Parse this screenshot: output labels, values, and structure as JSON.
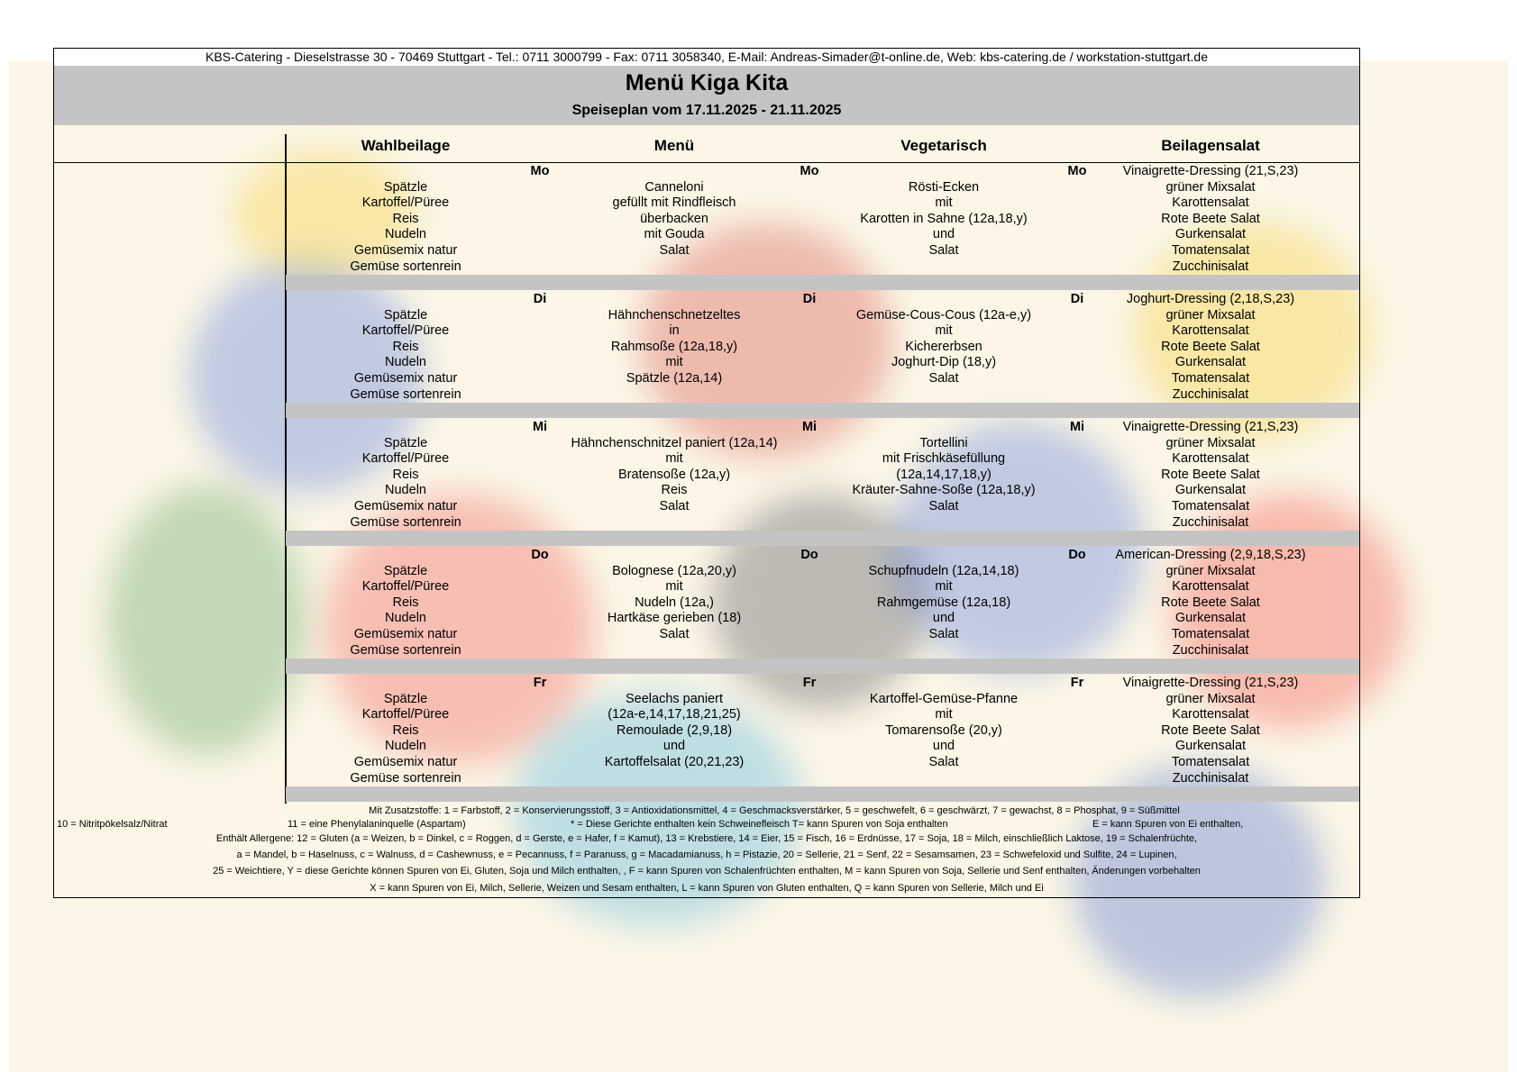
{
  "header": {
    "contact": "KBS-Catering - Dieselstrasse 30 - 70469 Stuttgart - Tel.: 0711 3000799 - Fax: 0711 3058340, E-Mail: Andreas-Simader@t-online.de, Web: kbs-catering.de / workstation-stuttgart.de",
    "title": "Menü Kiga Kita",
    "subtitle": "Speiseplan vom 17.11.2025 - 21.11.2025"
  },
  "columns": [
    "Wahlbeilage",
    "Menü",
    "Vegetarisch",
    "Beilagensalat"
  ],
  "days": [
    {
      "day": "Mo",
      "wahl": [
        "Spätzle",
        "Kartoffel/Püree",
        "Reis",
        "Nudeln",
        "Gemüsemix natur",
        "Gemüse sortenrein"
      ],
      "menu": [
        "Canneloni",
        "gefüllt mit Rindfleisch",
        "überbacken",
        "mit Gouda",
        "Salat"
      ],
      "veg": [
        "Rösti-Ecken",
        "mit",
        "Karotten in Sahne (12a,18,y)",
        "und",
        "Salat"
      ],
      "salat": [
        "Vinaigrette-Dressing (21,S,23)",
        "grüner Mixsalat",
        "Karottensalat",
        "Rote Beete Salat",
        "Gurkensalat",
        "Tomatensalat",
        "Zucchinisalat"
      ]
    },
    {
      "day": "Di",
      "wahl": [
        "Spätzle",
        "Kartoffel/Püree",
        "Reis",
        "Nudeln",
        "Gemüsemix natur",
        "Gemüse sortenrein"
      ],
      "menu": [
        "Hähnchenschnetzeltes",
        "in",
        "Rahmsoße (12a,18,y)",
        "mit",
        "Spätzle (12a,14)"
      ],
      "veg": [
        "Gemüse-Cous-Cous (12a-e,y)",
        "mit",
        "Kichererbsen",
        "Joghurt-Dip (18,y)",
        "Salat"
      ],
      "salat": [
        "Joghurt-Dressing  (2,18,S,23)",
        "grüner Mixsalat",
        "Karottensalat",
        "Rote Beete Salat",
        "Gurkensalat",
        "Tomatensalat",
        "Zucchinisalat"
      ]
    },
    {
      "day": "Mi",
      "wahl": [
        "Spätzle",
        "Kartoffel/Püree",
        "Reis",
        "Nudeln",
        "Gemüsemix natur",
        "Gemüse sortenrein"
      ],
      "menu": [
        "Hähnchenschnitzel paniert (12a,14)",
        "mit",
        "Bratensoße (12a,y)",
        "Reis",
        "Salat"
      ],
      "veg": [
        "Tortellini",
        "mit Frischkäsefüllung",
        "(12a,14,17,18,y)",
        "Kräuter-Sahne-Soße (12a,18,y)",
        "Salat"
      ],
      "salat": [
        "Vinaigrette-Dressing (21,S,23)",
        "grüner Mixsalat",
        "Karottensalat",
        "Rote Beete Salat",
        "Gurkensalat",
        "Tomatensalat",
        "Zucchinisalat"
      ]
    },
    {
      "day": "Do",
      "wahl": [
        "Spätzle",
        "Kartoffel/Püree",
        "Reis",
        "Nudeln",
        "Gemüsemix natur",
        "Gemüse sortenrein"
      ],
      "menu": [
        "Bolognese (12a,20,y)",
        "mit",
        "Nudeln (12a,)",
        "Hartkäse gerieben (18)",
        "Salat"
      ],
      "veg": [
        "Schupfnudeln (12a,14,18)",
        "mit",
        "Rahmgemüse (12a,18)",
        "und",
        "Salat"
      ],
      "salat": [
        "American-Dressing (2,9,18,S,23)",
        "grüner Mixsalat",
        "Karottensalat",
        "Rote Beete Salat",
        "Gurkensalat",
        "Tomatensalat",
        "Zucchinisalat"
      ]
    },
    {
      "day": "Fr",
      "wahl": [
        "Spätzle",
        "Kartoffel/Püree",
        "Reis",
        "Nudeln",
        "Gemüsemix natur",
        "Gemüse sortenrein"
      ],
      "menu": [
        "Seelachs paniert",
        "(12a-e,14,17,18,21,25)",
        "Remoulade (2,9,18)",
        "und",
        "Kartoffelsalat (20,21,23)"
      ],
      "veg": [
        "Kartoffel-Gemüse-Pfanne",
        "mit",
        "Tomarensoße (20,y)",
        "und",
        "Salat"
      ],
      "salat": [
        "Vinaigrette-Dressing (21,S,23)",
        "grüner Mixsalat",
        "Karottensalat",
        "Rote Beete Salat",
        "Gurkensalat",
        "Tomatensalat",
        "Zucchinisalat"
      ]
    }
  ],
  "footer": {
    "l1": "Mit Zusatzstoffe: 1 =  Farbstoff,  2 = Konservierungsstoff, 3 = Antioxidationsmittel, 4 =  Geschmacksverstärker, 5 = geschwefelt, 6 = geschwärzt, 7 = gewachst, 8 = Phosphat, 9 = Süßmittel",
    "l2a": "10 = Nitritpökelsalz/Nitrat",
    "l2b": "11 = eine Phenylalaninquelle (Aspartam)",
    "l2c": "* = Diese Gerichte enthalten kein Schweinefleisch  T= kann Spuren von Soja enthalten",
    "l2d": "E = kann Spuren von Ei enthalten,",
    "l3": "Enthält Allergene: 12 = Gluten (a = Weizen, b = Dinkel, c = Roggen, d = Gerste, e = Hafer, f = Kamut), 13 = Krebstiere, 14 = Eier, 15 = Fisch, 16 = Erdnüsse, 17 = Soja, 18 = Milch, einschließlich Laktose, 19 = Schalenfrüchte,",
    "l4": "a = Mandel, b = Haselnuss, c = Walnuss, d = Cashewnuss, e = Pecannuss, f = Paranuss, g = Macadamianuss, h = Pistazie, 20 = Sellerie, 21 = Senf, 22 = Sesamsamen, 23 = Schwefeloxid und Sulfite, 24 = Lupinen,",
    "l5": "25 = Weichtiere, Y = diese Gerichte können Spuren von Ei, Gluten, Soja und Milch enthalten, , F = kann Spuren von Schalenfrüchten enthalten, M = kann Spuren von Soja, Sellerie und Senf enthalten, Änderungen vorbehalten",
    "l6": "X =  kann Spuren von Ei, Milch, Sellerie, Weizen und Sesam  enthalten, L = kann Spuren von Gluten enthalten, Q = kann Spuren von Sellerie, Milch und Ei"
  }
}
